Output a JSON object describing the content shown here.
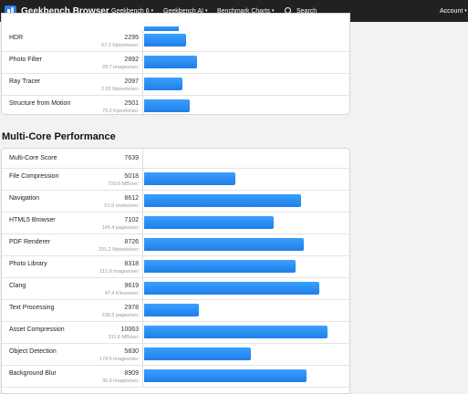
{
  "navbar": {
    "brand": "Geekbench Browser",
    "items": [
      {
        "label": "Geekbench 6",
        "dropdown": true
      },
      {
        "label": "Geekbench AI",
        "dropdown": true
      },
      {
        "label": "Benchmark Charts",
        "dropdown": true
      }
    ],
    "search_label": "Search",
    "account_label": "Account",
    "caret": "▾",
    "colors": {
      "background": "#212121",
      "bar": "#2a8af0"
    }
  },
  "single_core_partial": [
    {
      "name": "HDR",
      "score": "2295",
      "throughput": "67.3 Mpixels/sec",
      "score_value": 2295
    },
    {
      "name": "Photo Filter",
      "score": "2892",
      "throughput": "28.7 images/sec",
      "score_value": 2892
    },
    {
      "name": "Ray Tracer",
      "score": "2097",
      "throughput": "2.03 Mpixels/sec",
      "score_value": 2097
    },
    {
      "name": "Structure from Motion",
      "score": "2501",
      "throughput": "79.2 Kpixels/sec",
      "score_value": 2501
    }
  ],
  "multi_core": {
    "title": "Multi-Core Performance",
    "overall_label": "Multi-Core Score",
    "overall_score": "7639",
    "rows": [
      {
        "name": "File Compression",
        "score": "5018",
        "throughput": "720.6 MB/sec",
        "score_value": 5018
      },
      {
        "name": "Navigation",
        "score": "8612",
        "throughput": "51.9 routes/sec",
        "score_value": 8612
      },
      {
        "name": "HTML5 Browser",
        "score": "7102",
        "throughput": "145.4 pages/sec",
        "score_value": 7102
      },
      {
        "name": "PDF Renderer",
        "score": "8726",
        "throughput": "201.2 Mpixels/sec",
        "score_value": 8726
      },
      {
        "name": "Photo Library",
        "score": "8318",
        "throughput": "112.9 images/sec",
        "score_value": 8318
      },
      {
        "name": "Clang",
        "score": "9619",
        "throughput": "47.4 Klines/sec",
        "score_value": 9619
      },
      {
        "name": "Text Processing",
        "score": "2978",
        "throughput": "238.5 pages/sec",
        "score_value": 2978
      },
      {
        "name": "Asset Compression",
        "score": "10063",
        "throughput": "311.8 MB/sec",
        "score_value": 10063
      },
      {
        "name": "Object Detection",
        "score": "5830",
        "throughput": "174.5 images/sec",
        "score_value": 5830
      },
      {
        "name": "Background Blur",
        "score": "8909",
        "throughput": "36.9 images/sec",
        "score_value": 8909
      }
    ]
  }
}
